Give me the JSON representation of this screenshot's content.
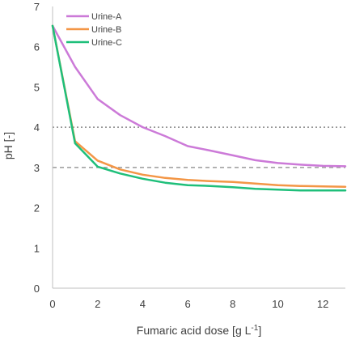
{
  "chart_data": {
    "type": "line",
    "title": "",
    "xlabel": "Fumaric acid dose [g L",
    "xlabel_superscript": "-1",
    "xlabel_suffix": "]",
    "ylabel": "pH [-]",
    "xlim": [
      0,
      13
    ],
    "ylim": [
      0,
      7
    ],
    "xticks": [
      0,
      2,
      4,
      6,
      8,
      10,
      12
    ],
    "yticks": [
      0,
      1,
      2,
      3,
      4,
      5,
      6,
      7
    ],
    "xtick_labels": [
      "0",
      "2",
      "4",
      "6",
      "8",
      "10",
      "12"
    ],
    "ytick_labels": [
      "0",
      "1",
      "2",
      "3",
      "4",
      "5",
      "6",
      "7"
    ],
    "grid": false,
    "legend_position": "top-left",
    "reference_lines": [
      {
        "y": 4,
        "style": "dotted",
        "color": "#8a8a8a"
      },
      {
        "y": 3,
        "style": "dashed",
        "color": "#9a9a9a"
      }
    ],
    "series": [
      {
        "name": "Urine-A",
        "color": "#cc7ad8",
        "x": [
          0,
          1,
          2,
          3,
          4,
          5,
          6,
          7,
          8,
          9,
          10,
          11,
          12,
          13
        ],
        "y": [
          6.52,
          5.5,
          4.7,
          4.3,
          4.0,
          3.78,
          3.53,
          3.42,
          3.3,
          3.18,
          3.11,
          3.07,
          3.04,
          3.03
        ]
      },
      {
        "name": "Urine-B",
        "color": "#f39646",
        "x": [
          0,
          1,
          2,
          3,
          4,
          5,
          6,
          7,
          8,
          9,
          10,
          11,
          12,
          13
        ],
        "y": [
          6.52,
          3.65,
          3.17,
          2.95,
          2.82,
          2.74,
          2.69,
          2.66,
          2.64,
          2.6,
          2.56,
          2.54,
          2.53,
          2.52
        ]
      },
      {
        "name": "Urine-C",
        "color": "#1fbf7a",
        "x": [
          0,
          1,
          2,
          3,
          4,
          5,
          6,
          7,
          8,
          9,
          10,
          11,
          12,
          13
        ],
        "y": [
          6.52,
          3.6,
          3.02,
          2.85,
          2.72,
          2.62,
          2.56,
          2.54,
          2.51,
          2.47,
          2.45,
          2.43,
          2.43,
          2.43
        ]
      }
    ]
  }
}
